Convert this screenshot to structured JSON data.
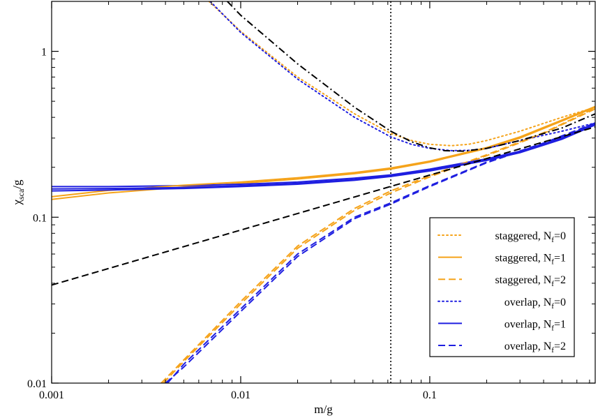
{
  "chart_data": {
    "type": "line",
    "xscale": "log",
    "yscale": "log",
    "xlim": [
      0.001,
      0.75
    ],
    "ylim": [
      0.01,
      2
    ],
    "xlabel": {
      "main": "m/g"
    },
    "ylabel": {
      "main": "χ",
      "sub": "sca",
      "tail": "/g"
    },
    "xticks": [
      {
        "value": 0.001,
        "label": "0.001"
      },
      {
        "value": 0.01,
        "label": "0.01"
      },
      {
        "value": 0.1,
        "label": "0.1"
      }
    ],
    "yticks": [
      {
        "value": 0.01,
        "label": "0.01"
      },
      {
        "value": 0.1,
        "label": "0.1"
      },
      {
        "value": 1,
        "label": "1"
      }
    ],
    "legend_position": "bottom-right",
    "colors": {
      "staggered": "#f5a31a",
      "overlap": "#1f1fe0",
      "reference": "#000000"
    },
    "series": [
      {
        "name": "staggered, N_f=0",
        "legend": {
          "text": "staggered, N",
          "sub": "f",
          "tail": "=0"
        },
        "color": "#f5a31a",
        "dash": "dotted",
        "x": [
          0.0068,
          0.01,
          0.02,
          0.04,
          0.0622,
          0.08,
          0.1,
          0.13,
          0.16,
          0.2,
          0.3,
          0.5,
          0.75
        ],
        "y": [
          2.0,
          1.32,
          0.7,
          0.42,
          0.32,
          0.29,
          0.275,
          0.27,
          0.275,
          0.29,
          0.33,
          0.4,
          0.46
        ]
      },
      {
        "name": "staggered, N_f=1",
        "legend": {
          "text": "staggered, N",
          "sub": "f",
          "tail": "=1"
        },
        "color": "#f5a31a",
        "dash": "solid",
        "x": [
          0.001,
          0.002,
          0.005,
          0.01,
          0.02,
          0.04,
          0.0622,
          0.1,
          0.2,
          0.3,
          0.5,
          0.75
        ],
        "y": [
          0.128,
          0.14,
          0.152,
          0.16,
          0.17,
          0.183,
          0.195,
          0.215,
          0.26,
          0.3,
          0.38,
          0.46
        ]
      },
      {
        "name": "staggered, N_f=2",
        "legend": {
          "text": "staggered, N",
          "sub": "f",
          "tail": "=2"
        },
        "color": "#f5a31a",
        "dash": "dashed",
        "x": [
          0.0039,
          0.005,
          0.01,
          0.02,
          0.04,
          0.0622,
          0.1,
          0.2,
          0.4,
          0.75
        ],
        "y": [
          0.01,
          0.0135,
          0.03,
          0.065,
          0.11,
          0.14,
          0.175,
          0.235,
          0.32,
          0.45
        ]
      },
      {
        "name": "overlap, N_f=0",
        "legend": {
          "text": "overlap, N",
          "sub": "f",
          "tail": "=0"
        },
        "color": "#1f1fe0",
        "dash": "dotted",
        "x": [
          0.0069,
          0.01,
          0.02,
          0.04,
          0.0622,
          0.08,
          0.1,
          0.13,
          0.16,
          0.2,
          0.3,
          0.5,
          0.75
        ],
        "y": [
          2.0,
          1.3,
          0.68,
          0.4,
          0.305,
          0.275,
          0.26,
          0.252,
          0.253,
          0.26,
          0.29,
          0.33,
          0.37
        ]
      },
      {
        "name": "overlap, N_f=1",
        "legend": {
          "text": "overlap, N",
          "sub": "f",
          "tail": "=1"
        },
        "color": "#1f1fe0",
        "dash": "solid",
        "x": [
          0.001,
          0.002,
          0.005,
          0.01,
          0.02,
          0.04,
          0.0622,
          0.1,
          0.2,
          0.3,
          0.5,
          0.75
        ],
        "y": [
          0.153,
          0.153,
          0.155,
          0.158,
          0.163,
          0.172,
          0.18,
          0.195,
          0.225,
          0.25,
          0.3,
          0.37
        ]
      },
      {
        "name": "overlap, N_f=2",
        "legend": {
          "text": "overlap, N",
          "sub": "f",
          "tail": "=2"
        },
        "color": "#1f1fe0",
        "dash": "dashed",
        "x": [
          0.0041,
          0.005,
          0.01,
          0.02,
          0.04,
          0.0622,
          0.1,
          0.2,
          0.4,
          0.75
        ],
        "y": [
          0.01,
          0.013,
          0.028,
          0.06,
          0.1,
          0.122,
          0.155,
          0.215,
          0.28,
          0.37
        ]
      },
      {
        "color": "#f5a31a",
        "dash": "solid",
        "x": [
          0.001,
          0.002,
          0.005,
          0.01,
          0.02,
          0.04,
          0.0622,
          0.1,
          0.2,
          0.3,
          0.5,
          0.75
        ],
        "y": [
          0.133,
          0.145,
          0.156,
          0.163,
          0.173,
          0.186,
          0.198,
          0.218,
          0.263,
          0.305,
          0.385,
          0.465
        ]
      },
      {
        "color": "#f5a31a",
        "dash": "dashed",
        "x": [
          0.0038,
          0.005,
          0.01,
          0.02,
          0.04,
          0.0622,
          0.1,
          0.2,
          0.4,
          0.75
        ],
        "y": [
          0.01,
          0.0138,
          0.031,
          0.067,
          0.113,
          0.144,
          0.178,
          0.238,
          0.323,
          0.455
        ]
      },
      {
        "color": "#1f1fe0",
        "dash": "solid",
        "x": [
          0.001,
          0.002,
          0.005,
          0.01,
          0.02,
          0.04,
          0.0622,
          0.1,
          0.2,
          0.3,
          0.5,
          0.75
        ],
        "y": [
          0.148,
          0.149,
          0.151,
          0.155,
          0.16,
          0.169,
          0.178,
          0.192,
          0.222,
          0.247,
          0.297,
          0.365
        ]
      },
      {
        "color": "#1f1fe0",
        "dash": "solid",
        "x": [
          0.001,
          0.002,
          0.005,
          0.01,
          0.02,
          0.04,
          0.0622,
          0.1,
          0.2,
          0.3,
          0.5,
          0.75
        ],
        "y": [
          0.144,
          0.146,
          0.149,
          0.153,
          0.158,
          0.167,
          0.176,
          0.19,
          0.22,
          0.245,
          0.295,
          0.36
        ]
      },
      {
        "color": "#1f1fe0",
        "dash": "dashed",
        "x": [
          0.004,
          0.005,
          0.01,
          0.02,
          0.04,
          0.0622,
          0.1,
          0.2,
          0.4,
          0.75
        ],
        "y": [
          0.01,
          0.0125,
          0.027,
          0.058,
          0.098,
          0.12,
          0.153,
          0.213,
          0.278,
          0.365
        ]
      },
      {
        "color": "#000000",
        "dash": "dashdot",
        "x": [
          0.0085,
          0.01,
          0.02,
          0.04,
          0.0622,
          0.08,
          0.1,
          0.12,
          0.15,
          0.2,
          0.3,
          0.5,
          0.75
        ],
        "y": [
          2.0,
          1.65,
          0.84,
          0.46,
          0.33,
          0.285,
          0.262,
          0.252,
          0.25,
          0.26,
          0.29,
          0.345,
          0.42
        ]
      },
      {
        "color": "#000000",
        "dash": "dashed",
        "x": [
          0.001,
          0.75
        ],
        "y": [
          0.039,
          0.35
        ]
      }
    ],
    "vlines": [
      {
        "x": 0.0622,
        "color": "#000000",
        "dash": "dotted"
      }
    ]
  }
}
